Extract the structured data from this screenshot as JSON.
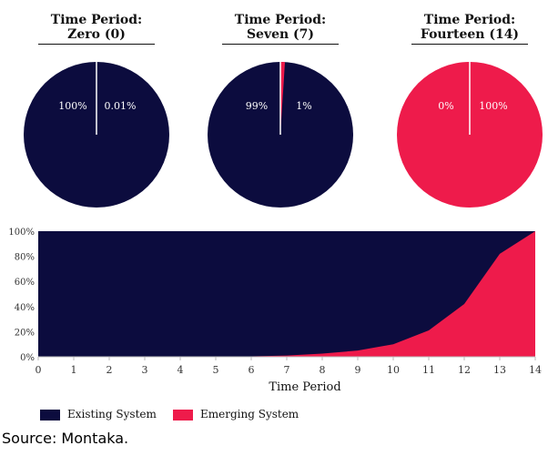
{
  "colors": {
    "existing": "#0c0c3e",
    "emerging": "#ee1b4b"
  },
  "pies": [
    {
      "title_line1": "Time Period:",
      "title_line2": "Zero (0)",
      "existing_pct": 99.99,
      "emerging_pct": 0.01,
      "label_existing": "100%",
      "label_emerging": "0.01%"
    },
    {
      "title_line1": "Time Period:",
      "title_line2": "Seven (7)",
      "existing_pct": 99,
      "emerging_pct": 1,
      "label_existing": "99%",
      "label_emerging": "1%"
    },
    {
      "title_line1": "Time Period:",
      "title_line2": "Fourteen (14)",
      "existing_pct": 0,
      "emerging_pct": 100,
      "label_existing": "0%",
      "label_emerging": "100%"
    }
  ],
  "chart_data": {
    "type": "area",
    "stacked": true,
    "x": [
      0,
      1,
      2,
      3,
      4,
      5,
      6,
      7,
      8,
      9,
      10,
      11,
      12,
      13,
      14
    ],
    "series": [
      {
        "name": "Existing System",
        "values": [
          100,
          100,
          100,
          100,
          100,
          99.8,
          99.6,
          99,
          97.5,
          95,
          90,
          79,
          58,
          18,
          0
        ]
      },
      {
        "name": "Emerging System",
        "values": [
          0,
          0,
          0,
          0,
          0,
          0.2,
          0.4,
          1,
          2.5,
          5,
          10,
          21,
          42,
          82,
          100
        ]
      }
    ],
    "xlabel": "Time Period",
    "ylabel": "",
    "ylim": [
      0,
      100
    ],
    "y_ticks": [
      "0%",
      "20%",
      "40%",
      "60%",
      "80%",
      "100%"
    ],
    "x_ticks": [
      "0",
      "1",
      "2",
      "3",
      "4",
      "5",
      "6",
      "7",
      "8",
      "9",
      "10",
      "11",
      "12",
      "13",
      "14"
    ],
    "legend": [
      "Existing System",
      "Emerging System"
    ],
    "legend_position": "bottom-left"
  },
  "source": "Source: Montaka."
}
